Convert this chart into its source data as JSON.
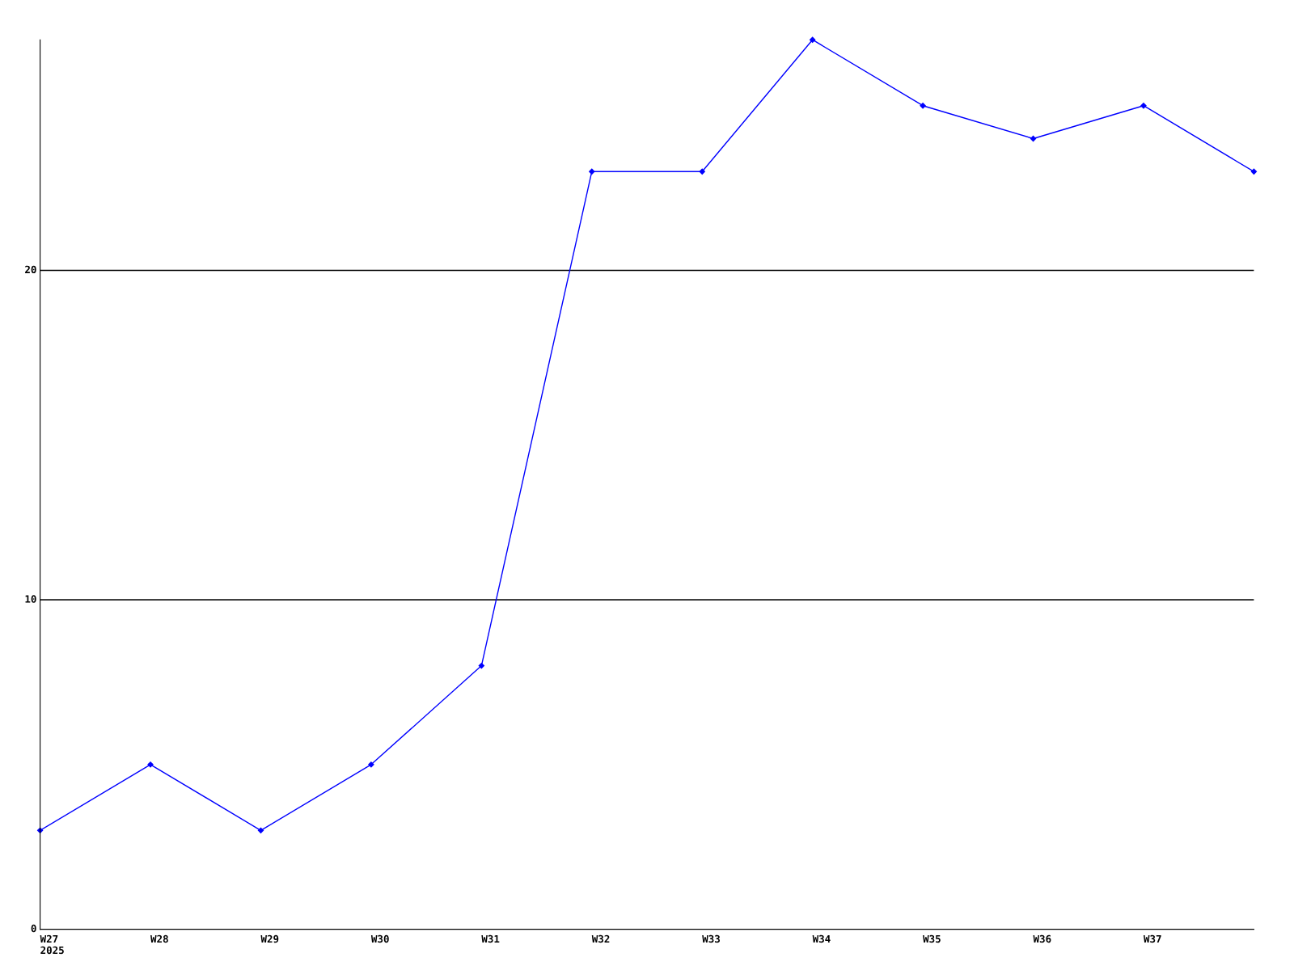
{
  "chart_data": {
    "type": "line",
    "categories": [
      "W27\n2025",
      "W28",
      "W29",
      "W30",
      "W31",
      "W32",
      "W33",
      "W34",
      "W35",
      "W36",
      "W37",
      null
    ],
    "series": [
      {
        "color": "#0000ff",
        "values": [
          3,
          5,
          3,
          5,
          8,
          23,
          23,
          27,
          25,
          24,
          25,
          23
        ]
      }
    ],
    "ylim": [
      0,
      27
    ],
    "yticks": [
      0,
      10,
      20
    ],
    "grid": "y",
    "marker": "diamond",
    "line_style": "solid",
    "legend": false
  }
}
